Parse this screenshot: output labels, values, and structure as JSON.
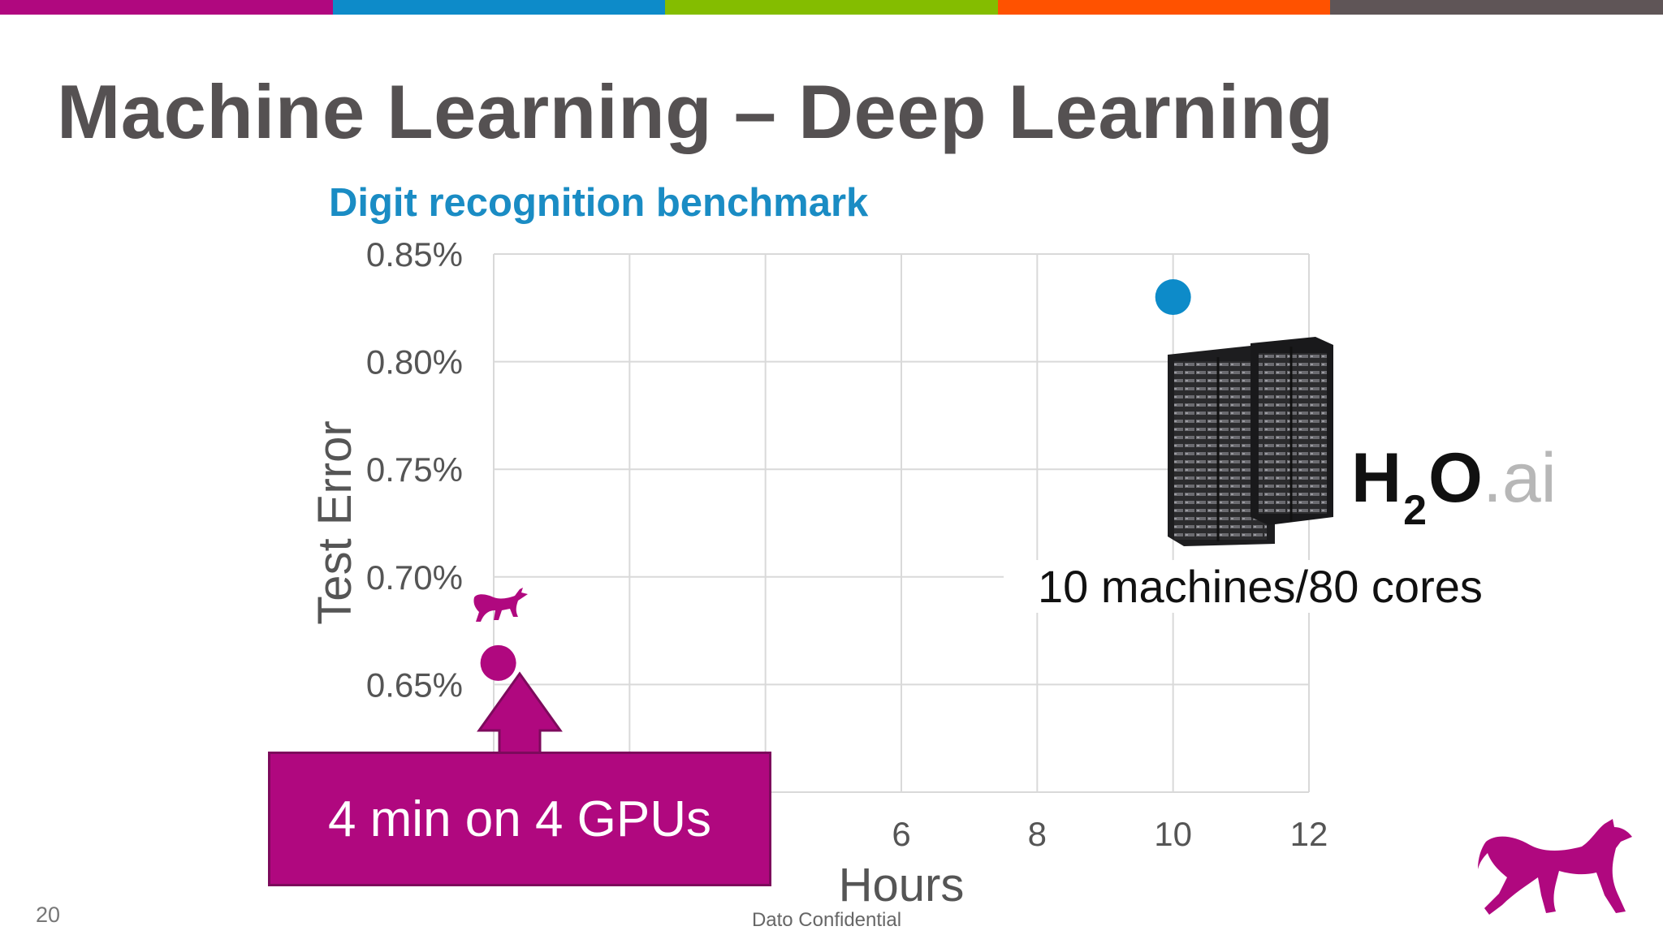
{
  "slide": {
    "title": "Machine Learning – Deep Learning",
    "page_number": "20",
    "footer": "Dato Confidential",
    "accent_colors": [
      "#b0087f",
      "#0d8bc9",
      "#84bd00",
      "#ff5200",
      "#5f5557"
    ]
  },
  "chart_data": {
    "type": "scatter",
    "title": "Digit recognition benchmark",
    "xlabel": "Hours",
    "ylabel": "Test Error",
    "xlim": [
      0,
      12
    ],
    "ylim": [
      0.6,
      0.85
    ],
    "x_ticks": [
      0,
      2,
      4,
      6,
      8,
      10,
      12
    ],
    "x_tick_labels": [
      "",
      "",
      "",
      "6",
      "8",
      "10",
      "12"
    ],
    "y_ticks": [
      0.6,
      0.65,
      0.7,
      0.75,
      0.8,
      0.85
    ],
    "y_tick_labels": [
      "",
      "0.65%",
      "0.70%",
      "0.75%",
      "0.80%",
      "0.85%"
    ],
    "grid": true,
    "title_color": "#1a8cc4",
    "points": [
      {
        "x": 0.067,
        "y": 0.66,
        "color": "#b0087f"
      },
      {
        "x": 10,
        "y": 0.83,
        "color": "#0d8bc9"
      }
    ],
    "annotations": {
      "gpu_label": "4 min on 4 GPUs",
      "machines_label": "10 machines/80 cores",
      "logo_main": "H",
      "logo_sub": "2",
      "logo_o": "O",
      "logo_ai": ".ai"
    }
  },
  "icons": {
    "server": "server-rack-icon",
    "dog_small": "dog-icon",
    "dog_logo": "dato-dog-logo"
  }
}
